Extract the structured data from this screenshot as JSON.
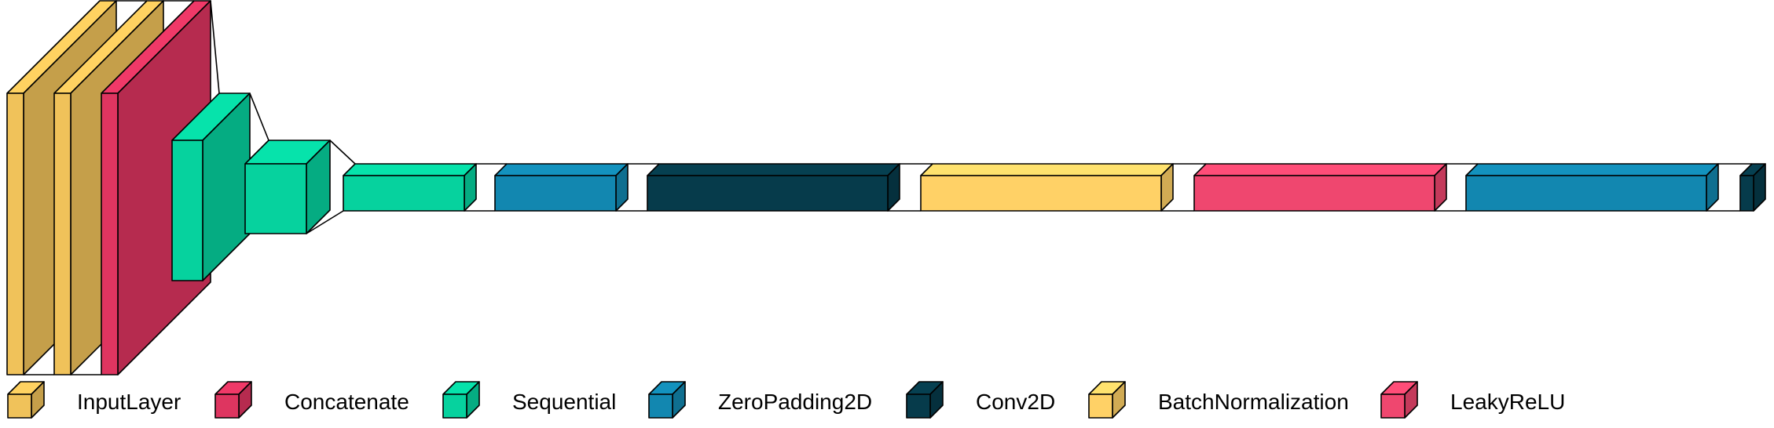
{
  "legend": [
    {
      "label": "InputLayer",
      "color": "#f0c25a"
    },
    {
      "label": "Concatenate",
      "color": "#de3560"
    },
    {
      "label": "Sequential",
      "color": "#06d29e"
    },
    {
      "label": "ZeroPadding2D",
      "color": "#1287b0"
    },
    {
      "label": "Conv2D",
      "color": "#063b4b"
    },
    {
      "label": "BatchNormalization",
      "color": "#ffd166"
    },
    {
      "label": "LeakyReLU",
      "color": "#ef476f"
    }
  ],
  "layers": [
    {
      "type": "InputLayer",
      "color": "#f0c25a"
    },
    {
      "type": "InputLayer",
      "color": "#f0c25a"
    },
    {
      "type": "Concatenate",
      "color": "#de3560"
    },
    {
      "type": "Sequential",
      "color": "#06d29e"
    },
    {
      "type": "Sequential",
      "color": "#06d29e"
    },
    {
      "type": "Sequential",
      "color": "#06d29e"
    },
    {
      "type": "ZeroPadding2D",
      "color": "#1287b0"
    },
    {
      "type": "Conv2D",
      "color": "#063b4b"
    },
    {
      "type": "BatchNormalization",
      "color": "#ffd166"
    },
    {
      "type": "LeakyReLU",
      "color": "#ef476f"
    },
    {
      "type": "ZeroPadding2D",
      "color": "#1287b0"
    },
    {
      "type": "Conv2D",
      "color": "#063b4b"
    }
  ]
}
